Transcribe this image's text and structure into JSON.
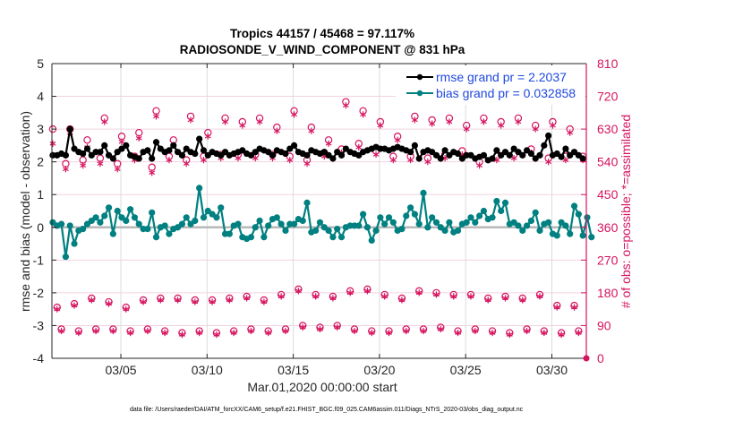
{
  "chart_data": {
    "type": "line",
    "title": "Tropics 44157 / 45468 = 97.117%",
    "subtitle": "RADIOSONDE_V_WIND_COMPONENT @ 831 hPa",
    "xlabel": "Mar.01,2020 00:00:00 start",
    "ylabel": "rmse and bias (model - observation)",
    "ylabel_right": "# of obs: o=possible; *=assimilated",
    "footnote": "data file: /Users/raeder/DAI/ATM_forcXX/CAM6_setup/f.e21.FHIST_BGC.f09_025.CAM6assim.011/Diags_NTrS_2020-03/obs_diag_output.nc",
    "xlim_days": [
      0,
      31
    ],
    "ylim": [
      -4,
      5
    ],
    "ylim_right": [
      0,
      810
    ],
    "grid": true,
    "x_ticks": [
      {
        "day": 4,
        "label": "03/05"
      },
      {
        "day": 9,
        "label": "03/10"
      },
      {
        "day": 14,
        "label": "03/15"
      },
      {
        "day": 19,
        "label": "03/20"
      },
      {
        "day": 24,
        "label": "03/25"
      },
      {
        "day": 29,
        "label": "03/30"
      }
    ],
    "y_ticks": [
      "-4",
      "-3",
      "-2",
      "-1",
      "0",
      "1",
      "2",
      "3",
      "4",
      "5"
    ],
    "y_ticks_right": [
      "0",
      "90",
      "180",
      "270",
      "360",
      "450",
      "540",
      "630",
      "720",
      "810"
    ],
    "legend": {
      "placement": "top-right",
      "entries": [
        {
          "name": "rmse grand pr = 2.2037",
          "color": "#000000"
        },
        {
          "name": "bias grand pr = 0.032858",
          "color": "#008080"
        }
      ]
    },
    "time_step_days": 0.25,
    "series": [
      {
        "name": "rmse",
        "color": "#000000",
        "values": [
          2.2,
          2.2,
          2.25,
          2.2,
          3.0,
          2.4,
          2.3,
          2.25,
          2.4,
          2.2,
          2.3,
          2.3,
          2.5,
          2.2,
          2.1,
          2.3,
          2.4,
          2.5,
          2.2,
          2.15,
          2.1,
          2.3,
          2.35,
          2.1,
          2.6,
          2.4,
          2.3,
          2.35,
          2.5,
          2.3,
          2.2,
          2.4,
          2.3,
          2.25,
          2.7,
          2.35,
          2.2,
          2.3,
          2.25,
          2.2,
          2.3,
          2.2,
          2.25,
          2.3,
          2.35,
          2.25,
          2.2,
          2.3,
          2.4,
          2.35,
          2.3,
          2.2,
          2.35,
          2.3,
          2.25,
          2.4,
          2.5,
          2.3,
          2.25,
          2.2,
          2.35,
          2.3,
          2.25,
          2.3,
          2.2,
          2.1,
          2.3,
          2.2,
          2.4,
          2.3,
          2.25,
          2.2,
          2.3,
          2.35,
          2.4,
          2.45,
          2.4,
          2.4,
          2.35,
          2.4,
          2.45,
          2.4,
          2.35,
          2.3,
          2.5,
          2.1,
          2.3,
          2.35,
          2.3,
          2.2,
          2.1,
          2.35,
          2.2,
          2.3,
          2.25,
          2.1,
          2.2,
          2.2,
          2.1,
          2.15,
          2.2,
          2.05,
          2.1,
          2.35,
          2.2,
          2.3,
          2.2,
          2.4,
          2.3,
          2.2,
          2.35,
          2.25,
          2.1,
          2.2,
          2.5,
          2.8,
          2.2,
          2.25,
          2.15,
          2.4,
          2.2,
          2.3,
          2.2,
          2.1
        ],
        "marker": "filled-circle"
      },
      {
        "name": "bias",
        "color": "#008080",
        "values": [
          0.15,
          0.05,
          0.1,
          -0.9,
          0.05,
          -0.5,
          -0.1,
          -0.05,
          0.1,
          0.2,
          0.3,
          0.15,
          0.35,
          0.6,
          -0.2,
          0.5,
          0.3,
          0.2,
          0.55,
          0.3,
          0.1,
          -0.05,
          -0.05,
          0.45,
          -0.3,
          0.0,
          0.05,
          -0.2,
          -0.05,
          0.0,
          0.1,
          0.3,
          0.1,
          0.2,
          1.2,
          0.3,
          0.5,
          0.4,
          0.3,
          0.6,
          -0.2,
          -0.2,
          0.05,
          0.1,
          -0.3,
          -0.35,
          -0.3,
          0.0,
          0.2,
          -0.3,
          0.05,
          0.25,
          0.3,
          0.1,
          -0.1,
          0.1,
          0.1,
          0.25,
          0.2,
          0.75,
          -0.15,
          -0.1,
          0.15,
          0.0,
          -0.1,
          -0.3,
          -0.05,
          -0.3,
          0.0,
          0.05,
          0.05,
          0.05,
          0.4,
          0.0,
          -0.4,
          -0.1,
          0.3,
          0.1,
          0.3,
          0.15,
          -0.1,
          -0.05,
          0.35,
          0.6,
          0.4,
          0.1,
          1.05,
          0.0,
          0.3,
          0.15,
          0.0,
          -0.1,
          0.15,
          -0.15,
          -0.1,
          0.1,
          0.15,
          0.3,
          0.15,
          0.35,
          0.5,
          0.25,
          0.3,
          0.8,
          0.5,
          0.75,
          0.1,
          0.15,
          0.05,
          -0.1,
          0.05,
          0.2,
          0.45,
          -0.1,
          0.1,
          0.15,
          -0.2,
          -0.25,
          0.15,
          0.05,
          -0.2,
          0.65,
          0.4,
          -0.25,
          0.3,
          -0.3
        ],
        "marker": "filled-circle"
      },
      {
        "name": "obs possible",
        "color": "#d6145f",
        "axis": "right",
        "marker": "open-circle",
        "values": [
          630,
          140,
          80,
          535,
          630,
          150,
          75,
          545,
          600,
          165,
          80,
          550,
          660,
          155,
          80,
          535,
          610,
          140,
          75,
          555,
          620,
          160,
          80,
          525,
          680,
          165,
          75,
          555,
          600,
          165,
          70,
          545,
          665,
          160,
          75,
          555,
          620,
          160,
          70,
          560,
          660,
          165,
          75,
          560,
          650,
          170,
          80,
          560,
          660,
          160,
          75,
          560,
          635,
          175,
          80,
          555,
          680,
          190,
          90,
          545,
          635,
          175,
          85,
          565,
          600,
          170,
          90,
          575,
          705,
          185,
          80,
          590,
          680,
          190,
          75,
          570,
          650,
          175,
          75,
          555,
          610,
          165,
          80,
          555,
          665,
          185,
          80,
          550,
          655,
          180,
          85,
          560,
          660,
          175,
          75,
          570,
          640,
          175,
          80,
          540,
          660,
          165,
          75,
          555,
          650,
          170,
          70,
          560,
          660,
          165,
          80,
          575,
          640,
          175,
          75,
          550,
          650,
          145,
          70,
          555,
          630,
          145,
          75,
          555
        ]
      },
      {
        "name": "obs assimilated",
        "color": "#d6145f",
        "axis": "right",
        "marker": "asterisk",
        "values": [
          590,
          135,
          75,
          520,
          620,
          145,
          70,
          530,
          580,
          160,
          75,
          535,
          650,
          150,
          75,
          520,
          595,
          135,
          70,
          545,
          605,
          155,
          75,
          510,
          665,
          160,
          70,
          545,
          585,
          160,
          65,
          535,
          655,
          155,
          70,
          545,
          610,
          155,
          65,
          550,
          650,
          160,
          70,
          550,
          640,
          165,
          75,
          550,
          650,
          155,
          70,
          550,
          625,
          170,
          75,
          545,
          670,
          185,
          85,
          535,
          625,
          170,
          80,
          555,
          590,
          165,
          85,
          565,
          695,
          180,
          75,
          580,
          670,
          185,
          70,
          560,
          640,
          170,
          70,
          545,
          600,
          160,
          75,
          545,
          655,
          180,
          75,
          540,
          645,
          175,
          80,
          550,
          650,
          170,
          70,
          560,
          630,
          170,
          75,
          530,
          650,
          160,
          70,
          545,
          640,
          165,
          65,
          550,
          650,
          160,
          75,
          565,
          630,
          170,
          70,
          540,
          640,
          140,
          65,
          545,
          620,
          140,
          70,
          545
        ]
      }
    ]
  }
}
